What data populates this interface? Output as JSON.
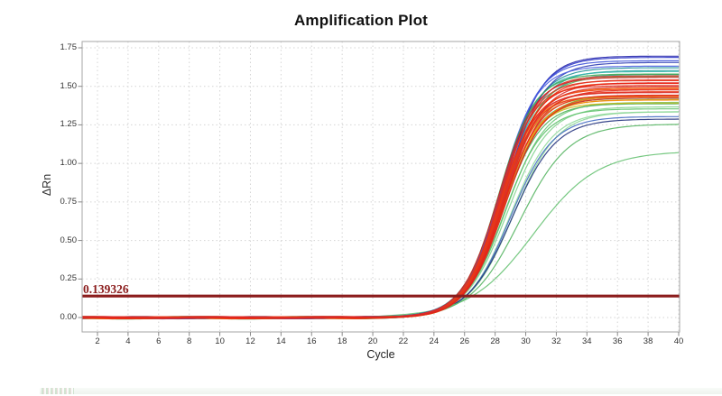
{
  "colors": {
    "threshold": "#8b1c1c",
    "grid": "#d4d4d4",
    "axis_border": "#a6a6a6",
    "tick_mark": "#8a8a8a",
    "plot_background": "#ffffff",
    "bottom_strip": "#eef3ee"
  },
  "chart_data": {
    "type": "line",
    "title": "Amplification Plot",
    "xlabel": "Cycle",
    "ylabel": "ΔRn",
    "xlim": [
      1,
      40
    ],
    "ylim": [
      -0.094,
      1.791
    ],
    "x_ticks": [
      2,
      4,
      6,
      8,
      10,
      12,
      14,
      16,
      18,
      20,
      22,
      24,
      26,
      28,
      30,
      32,
      34,
      36,
      38,
      40
    ],
    "y_ticks": [
      "0.00",
      "0.25",
      "0.50",
      "0.75",
      "1.00",
      "1.25",
      "1.50",
      "1.75"
    ],
    "grid": "dotted, at every x tick and every 0.25 on y",
    "legend": "none",
    "threshold": {
      "value": 0.139326,
      "label": "0.139326",
      "color": "#8b1c1c"
    },
    "curve_model": "sigmoid amplification curves: value(cycle) = base + plateau / (1 + exp(-k*(cycle-mid))); flat near 0 until ~cycle 22, threshold crossing ~cycle 25-27, plateau by ~cycle 36-40",
    "series_fields": [
      "color",
      "plateau",
      "mid",
      "k",
      "base"
    ],
    "series": [
      [
        "#43b050",
        1.442,
        28.6,
        0.78,
        -0.002
      ],
      [
        "#55bb63",
        1.42,
        28.4,
        0.8,
        0.003
      ],
      [
        "#69c776",
        1.4,
        28.7,
        0.76,
        -0.004
      ],
      [
        "#4caf57",
        1.386,
        28.5,
        0.8,
        0.001
      ],
      [
        "#7ed18a",
        1.37,
        28.8,
        0.74,
        -0.003
      ],
      [
        "#5bbf68",
        1.352,
        28.6,
        0.78,
        0.002
      ],
      [
        "#8fd99a",
        1.34,
        29.0,
        0.72,
        -0.005
      ],
      [
        "#8ad695",
        1.334,
        29.2,
        0.7,
        0.001
      ],
      [
        "#3f68c0",
        1.306,
        29.0,
        0.72,
        -0.002
      ],
      [
        "#1d2c7a",
        1.286,
        29.1,
        0.7,
        0.002
      ],
      [
        "#52b35e",
        1.258,
        29.6,
        0.62,
        -0.003
      ],
      [
        "#63c06f",
        1.08,
        30.5,
        0.48,
        0.001
      ],
      [
        "#c0a818",
        1.436,
        28.3,
        0.82,
        -0.002
      ],
      [
        "#b3a024",
        1.412,
        28.5,
        0.8,
        0.002
      ],
      [
        "#cdb512",
        1.396,
        28.4,
        0.84,
        -0.004
      ],
      [
        "#1f9096",
        1.62,
        28.4,
        0.8,
        0.001
      ],
      [
        "#2aa6a0",
        1.606,
        28.5,
        0.78,
        -0.003
      ],
      [
        "#35b4ab",
        1.592,
        28.3,
        0.82,
        0.004
      ],
      [
        "#2f9e8e",
        1.578,
        28.6,
        0.8,
        -0.001
      ],
      [
        "#2424aa",
        1.7,
        28.6,
        0.82,
        -0.004
      ],
      [
        "#2b36c8",
        1.686,
        28.5,
        0.8,
        0.002
      ],
      [
        "#3b50d8",
        1.668,
        28.4,
        0.82,
        -0.002
      ],
      [
        "#2b3ab2",
        1.652,
        28.6,
        0.78,
        0.003
      ],
      [
        "#4a60e0",
        1.636,
        28.3,
        0.84,
        -0.005
      ],
      [
        "#3aa84c",
        1.586,
        28.2,
        0.84,
        -0.006
      ],
      [
        "#4db860",
        1.562,
        28.5,
        0.8,
        0.002
      ],
      [
        "#f2600d",
        1.52,
        28.4,
        0.84,
        0.001
      ],
      [
        "#f86f0a",
        1.492,
        28.3,
        0.82,
        -0.003
      ],
      [
        "#ef5a12",
        1.462,
        28.5,
        0.84,
        0.002
      ],
      [
        "#f97d08",
        1.44,
        28.2,
        0.86,
        -0.002
      ],
      [
        "#f0650f",
        1.43,
        28.6,
        0.8,
        0.003
      ],
      [
        "#fa8a06",
        1.416,
        28.4,
        0.82,
        -0.005
      ],
      [
        "#e02418",
        1.57,
        28.4,
        0.86,
        -0.002
      ],
      [
        "#d81f1f",
        1.556,
        28.2,
        0.84,
        0.002
      ],
      [
        "#ef2c12",
        1.546,
        28.5,
        0.82,
        -0.004
      ],
      [
        "#e0301c",
        1.536,
        28.3,
        0.86,
        0.001
      ],
      [
        "#d92525",
        1.526,
        28.6,
        0.8,
        -0.003
      ],
      [
        "#ea2010",
        1.516,
        28.4,
        0.84,
        0.003
      ],
      [
        "#e3321e",
        1.506,
        28.2,
        0.88,
        -0.001
      ],
      [
        "#d52a2a",
        1.496,
        28.5,
        0.82,
        0.002
      ],
      [
        "#ee3b0f",
        1.486,
        28.3,
        0.84,
        -0.004
      ],
      [
        "#df2616",
        1.476,
        28.6,
        0.8,
        0.001
      ],
      [
        "#e82e1a",
        1.466,
        28.4,
        0.86,
        -0.002
      ],
      [
        "#d73030",
        1.456,
        28.2,
        0.84,
        0.003
      ],
      [
        "#ec2513",
        1.446,
        28.5,
        0.82,
        -0.003
      ],
      [
        "#e13a20",
        1.436,
        28.3,
        0.86,
        0.002
      ],
      [
        "#da2121",
        1.426,
        28.6,
        0.8,
        -0.001
      ]
    ]
  }
}
